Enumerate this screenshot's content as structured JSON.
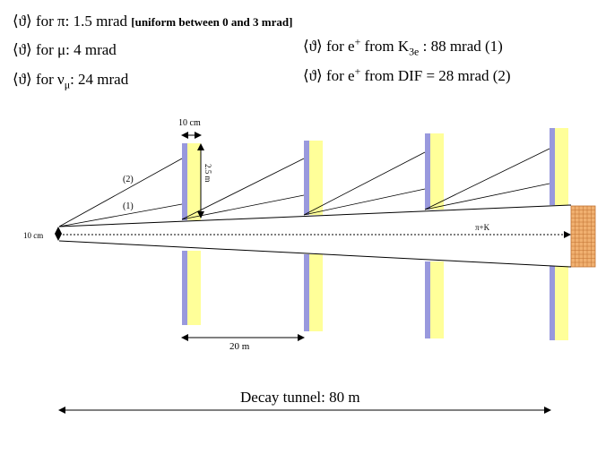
{
  "angles": {
    "pi": {
      "symbol": "⟨ϑ⟩",
      "for": "for",
      "particle": "π",
      "value": ": 1.5 mrad",
      "note": "[uniform between 0 and 3 mrad]"
    },
    "mu": {
      "symbol": "⟨ϑ⟩",
      "for": "for",
      "particle": "μ",
      "value": ": 4 mrad"
    },
    "numu": {
      "symbol": "⟨ϑ⟩",
      "for": "for",
      "particle": "ν",
      "particle_sub": "μ",
      "value": ": 24 mrad"
    },
    "e_k3e": {
      "symbol": "⟨ϑ⟩",
      "prefix": "for e",
      "sup": "+",
      "from": "from K",
      "sub": "3e",
      "value": " : 88 mrad (1)"
    },
    "e_dif": {
      "symbol": "⟨ϑ⟩",
      "prefix": "for  e",
      "sup": "+",
      "value": " from DIF = 28 mrad (2)"
    }
  },
  "diagram": {
    "width_label": "10 cm",
    "height_label": "2.5 m",
    "ray2_label": "(2)",
    "ray1_label": "(1)",
    "aperture_label": "10 cm",
    "beam_label": "π+K",
    "spacing_label": "20 m",
    "tunnel_label": "Decay tunnel: 80 m"
  },
  "colors": {
    "detector_blue": "#9999dd",
    "detector_yellow": "#ffff99",
    "calorimeter": "#f0b070",
    "calorimeter_grid": "#c07030"
  }
}
